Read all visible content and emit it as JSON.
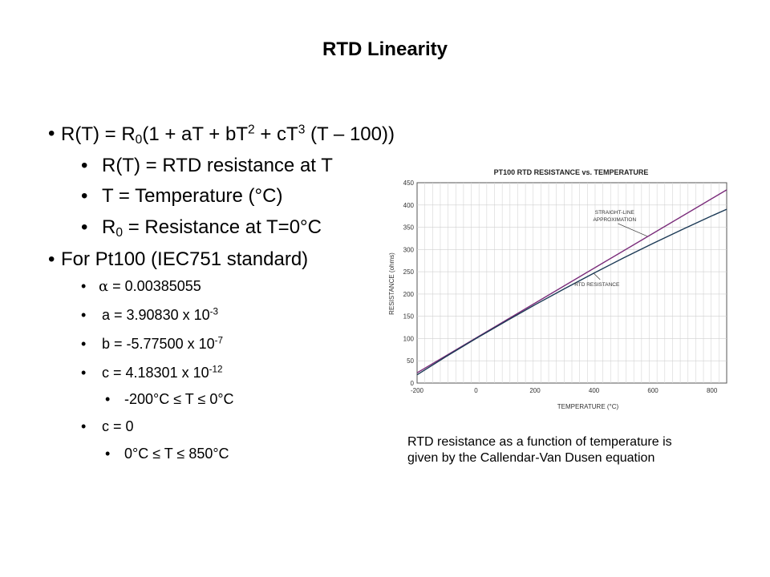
{
  "slide": {
    "title": "RTD Linearity",
    "caption_line1": "RTD resistance as a function of temperature is",
    "caption_line2": "given by the Callendar-Van Dusen equation"
  },
  "bullets": {
    "eq": {
      "a": "R(T) = R",
      "b": "0",
      "c": "(1 + aT + bT",
      "d": "2",
      "e": " + cT",
      "f": "3",
      "g": " (T – 100))"
    },
    "def_rt": "R(T) = RTD resistance at T",
    "def_t": "T = Temperature (°C)",
    "def_r0": {
      "a": "R",
      "b": "0",
      "c": " = Resistance at T=0°C"
    },
    "pt100": "For Pt100 (IEC751 standard)",
    "alpha": {
      "sym": "α",
      "val": " = 0.00385055"
    },
    "coef_a": {
      "a": "a = 3.90830 x 10",
      "exp": "-3"
    },
    "coef_b": {
      "a": "b = -5.77500 x 10",
      "exp": "-7"
    },
    "coef_c": {
      "a": "c = 4.18301 x 10",
      "exp": "-12"
    },
    "range1": "-200°C ≤ T ≤ 0°C",
    "c_zero": "c = 0",
    "range2": "0°C ≤ T ≤ 850°C"
  },
  "chart_data": {
    "type": "line",
    "title": "PT100 RTD RESISTANCE vs. TEMPERATURE",
    "xlabel": "TEMPERATURE (°C)",
    "ylabel": "RESISTANCE (ohms)",
    "xlim": [
      -200,
      850
    ],
    "ylim": [
      0,
      450
    ],
    "xticks": [
      -200,
      0,
      200,
      400,
      600,
      800
    ],
    "xtick_labels": [
      "-200",
      "0",
      "200",
      "400",
      "600",
      "800"
    ],
    "yticks": [
      0,
      50,
      100,
      150,
      200,
      250,
      300,
      350,
      400,
      450
    ],
    "ytick_labels": [
      "0",
      "50",
      "100",
      "150",
      "200",
      "250",
      "300",
      "350",
      "400",
      "450"
    ],
    "grid": true,
    "series": [
      {
        "name": "STRAIGHT-LINE APPROXIMATION",
        "color": "#7a2b7a",
        "x": [
          -200,
          850
        ],
        "y": [
          23,
          434
        ]
      },
      {
        "name": "RTD RESISTANCE",
        "color": "#1c3a56",
        "x": [
          -200,
          -100,
          0,
          100,
          200,
          300,
          400,
          500,
          600,
          700,
          800,
          850
        ],
        "y": [
          18.5,
          60.3,
          100,
          138.5,
          175.9,
          212.1,
          247.1,
          280.9,
          313.7,
          345.3,
          375.7,
          390.5
        ]
      }
    ],
    "annotations": [
      {
        "text_lines": [
          "STRAIGHT-LINE",
          "APPROXIMATION"
        ],
        "x": 470,
        "y": 380,
        "series": 0,
        "point_x": 580,
        "point_y": 330
      },
      {
        "text_lines": [
          "RTD RESISTANCE"
        ],
        "x": 410,
        "y": 218,
        "series": 1,
        "point_x": 400,
        "point_y": 246
      }
    ]
  }
}
